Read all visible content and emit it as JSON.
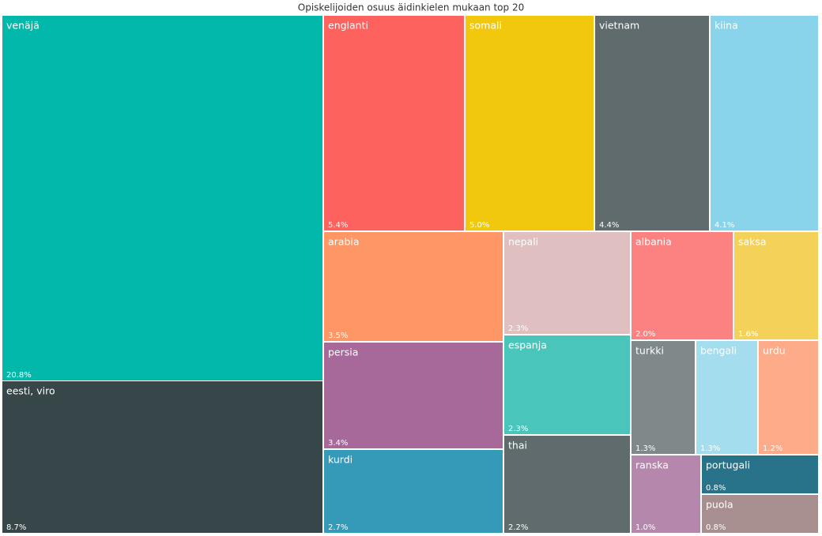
{
  "chart_data": {
    "type": "treemap",
    "title": "Opiskelijoiden osuus äidinkielen mukaan top 20",
    "categories": [
      "venäjä",
      "eesti, viro",
      "englanti",
      "somali",
      "vietnam",
      "kiina",
      "arabia",
      "persia",
      "kurdi",
      "nepali",
      "espanja",
      "thai",
      "albania",
      "saksa",
      "turkki",
      "bengali",
      "urdu",
      "ranska",
      "portugali",
      "puola"
    ],
    "values": [
      20.8,
      8.7,
      5.4,
      5.0,
      4.4,
      4.1,
      3.5,
      3.4,
      2.7,
      2.3,
      2.3,
      2.2,
      2.0,
      1.6,
      1.3,
      1.3,
      1.2,
      1.0,
      0.8,
      0.8
    ],
    "value_labels": [
      "20.8%",
      "8.7%",
      "5.4%",
      "5.0%",
      "4.4%",
      "4.1%",
      "3.5%",
      "3.4%",
      "2.7%",
      "2.3%",
      "2.3%",
      "2.2%",
      "2.0%",
      "1.6%",
      "1.3%",
      "1.3%",
      "1.2%",
      "1.0%",
      "0.8%",
      "0.8%"
    ],
    "colors": [
      "#01b8aa",
      "#374649",
      "#fd625e",
      "#f2c80f",
      "#5f6b6d",
      "#8ad4eb",
      "#fe9666",
      "#a66999",
      "#3599b8",
      "#dfbfbf",
      "#4ac5bb",
      "#5f6b6d",
      "#fb8281",
      "#f4d25a",
      "#7f898a",
      "#a4ddee",
      "#fdab89",
      "#b687ac",
      "#28738a",
      "#a78f8f"
    ]
  }
}
